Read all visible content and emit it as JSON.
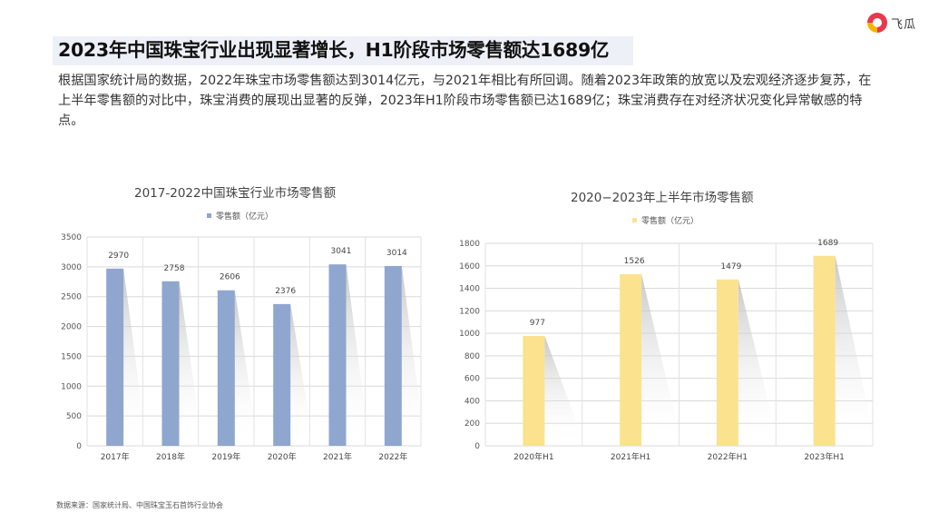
{
  "brand": {
    "name": "飞瓜"
  },
  "headline": "2023年中国珠宝行业出现显著增长，H1阶段市场零售额达1689亿",
  "paragraph": "根据国家统计局的数据，2022年珠宝市场零售额达到3014亿元，与2021年相比有所回调。随着2023年政策的放宽以及宏观经济逐步复苏，在上半年零售额的对比中，珠宝消费的展现出显著的反弹，2023年H1阶段市场零售额已达1689亿；珠宝消费存在对经济状况变化异常敏感的特点。",
  "source": "数据来源：国家统计局、中国珠宝玉石首饰行业协会",
  "chart_data": [
    {
      "type": "bar",
      "title": "2017-2022中国珠宝行业市场零售额",
      "legend": "零售额（亿元）",
      "color": "#8fa6cf",
      "categories": [
        "2017年",
        "2018年",
        "2019年",
        "2020年",
        "2021年",
        "2022年"
      ],
      "values": [
        2970,
        2758,
        2606,
        2376,
        3041,
        3014
      ],
      "ylim": [
        0,
        3500
      ],
      "yticks": [
        "0",
        "500",
        "1000",
        "1500",
        "2000",
        "2500",
        "3000",
        "3500"
      ],
      "grid": true
    },
    {
      "type": "bar",
      "title": "2020−2023年上半年市场零售额",
      "legend": "零售额（亿元）",
      "color": "#fbe28e",
      "categories": [
        "2020年H1",
        "2021年H1",
        "2022年H1",
        "2023年H1"
      ],
      "values": [
        977,
        1526,
        1479,
        1689
      ],
      "ylim": [
        0,
        1800
      ],
      "yticks": [
        "0",
        "200",
        "400",
        "600",
        "800",
        "1000",
        "1200",
        "1400",
        "1600",
        "1800"
      ],
      "grid": true
    }
  ]
}
